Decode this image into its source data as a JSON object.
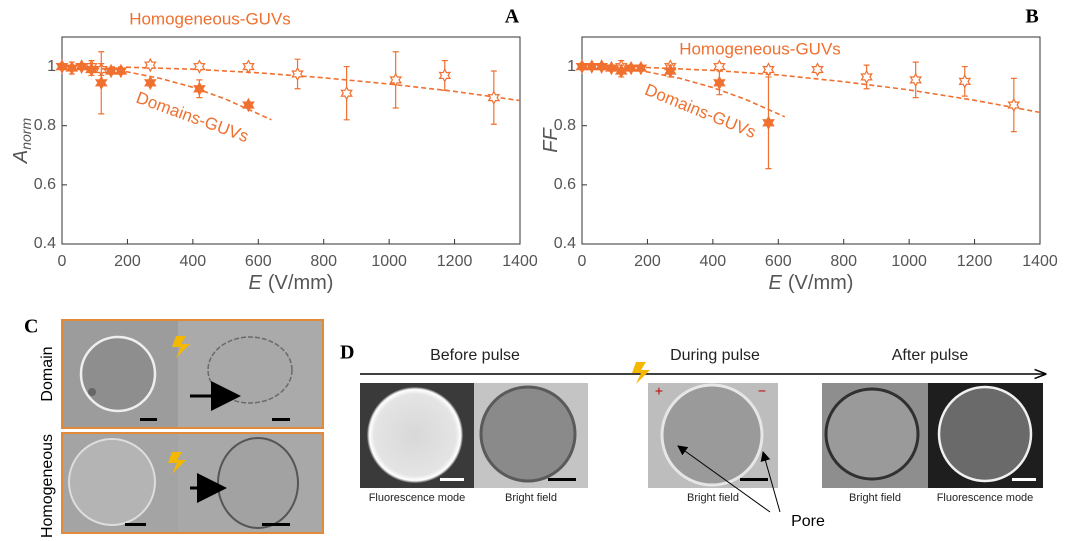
{
  "chart_data": [
    {
      "type": "scatter",
      "panel_label": "A",
      "y_label": "A",
      "y_label_subscript": "norm",
      "x_label_symbol": "E",
      "x_label_unit": "(V/mm)",
      "xlim": [
        0,
        1400
      ],
      "xticks": [
        0,
        200,
        400,
        600,
        800,
        1000,
        1200,
        1400
      ],
      "ylim": [
        0.4,
        1.1
      ],
      "yticks": [
        0.4,
        0.6,
        0.8,
        1
      ],
      "series": [
        {
          "name": "Homogeneous-GUVs",
          "color": "#f07030",
          "marker": "open",
          "x": [
            0,
            60,
            90,
            120,
            270,
            420,
            570,
            720,
            870,
            1020,
            1170,
            1320
          ],
          "values": [
            1.0,
            1.0,
            1.0,
            0.99,
            1.005,
            1.0,
            1.0,
            0.975,
            0.91,
            0.955,
            0.97,
            0.895
          ],
          "errors": [
            0.01,
            0.01,
            0.02,
            0.02,
            0.01,
            0.01,
            0.01,
            0.05,
            0.09,
            0.095,
            0.05,
            0.09
          ],
          "fit": {
            "x": [
              0,
              200,
              400,
              600,
              800,
              1000,
              1200,
              1400
            ],
            "values": [
              1.0,
              0.998,
              0.991,
              0.979,
              0.962,
              0.941,
              0.916,
              0.885
            ]
          }
        },
        {
          "name": "Domains-GUVs",
          "color": "#f07030",
          "marker": "filled",
          "x": [
            0,
            30,
            60,
            90,
            120,
            150,
            180,
            270,
            420,
            570
          ],
          "values": [
            1.0,
            0.995,
            1.0,
            0.99,
            0.945,
            0.985,
            0.985,
            0.945,
            0.925,
            0.87
          ],
          "errors": [
            0.01,
            0.02,
            0.01,
            0.02,
            0.105,
            0.01,
            0.01,
            0.01,
            0.03,
            0.01
          ],
          "fit": {
            "x": [
              0,
              100,
              200,
              300,
              400,
              500,
              640
            ],
            "values": [
              1.0,
              0.996,
              0.982,
              0.96,
              0.93,
              0.89,
              0.82
            ]
          }
        }
      ]
    },
    {
      "type": "scatter",
      "panel_label": "B",
      "y_label": "FF",
      "x_label_symbol": "E",
      "x_label_unit": "(V/mm)",
      "xlim": [
        0,
        1400
      ],
      "xticks": [
        0,
        200,
        400,
        600,
        800,
        1000,
        1200,
        1400
      ],
      "ylim": [
        0.4,
        1.1
      ],
      "yticks": [
        0.4,
        0.6,
        0.8,
        1
      ],
      "series": [
        {
          "name": "Homogeneous-GUVs",
          "color": "#f07030",
          "marker": "open",
          "x": [
            0,
            60,
            120,
            270,
            420,
            570,
            720,
            870,
            1020,
            1170,
            1320
          ],
          "values": [
            1.0,
            1.0,
            1.0,
            1.0,
            1.0,
            0.99,
            0.99,
            0.965,
            0.955,
            0.95,
            0.87
          ],
          "errors": [
            0.01,
            0.01,
            0.02,
            0.01,
            0.01,
            0.01,
            0.01,
            0.04,
            0.06,
            0.05,
            0.09
          ],
          "fit": {
            "x": [
              0,
              200,
              400,
              600,
              800,
              1000,
              1200,
              1400
            ],
            "values": [
              1.0,
              0.997,
              0.987,
              0.972,
              0.949,
              0.921,
              0.886,
              0.845
            ]
          }
        },
        {
          "name": "Domains-GUVs",
          "color": "#f07030",
          "marker": "filled",
          "x": [
            0,
            30,
            60,
            90,
            120,
            150,
            180,
            270,
            420,
            570
          ],
          "values": [
            1.0,
            1.0,
            1.0,
            0.995,
            0.985,
            0.995,
            0.995,
            0.985,
            0.945,
            0.81
          ],
          "errors": [
            0.01,
            0.01,
            0.01,
            0.01,
            0.02,
            0.01,
            0.01,
            0.02,
            0.04,
            0.155
          ],
          "fit": {
            "x": [
              0,
              100,
              200,
              300,
              400,
              500,
              620
            ],
            "values": [
              1.0,
              0.996,
              0.982,
              0.96,
              0.929,
              0.889,
              0.83
            ]
          }
        }
      ]
    }
  ],
  "panel_c": {
    "label": "C",
    "rows": [
      "Domain",
      "Homogeneous"
    ]
  },
  "panel_d": {
    "label": "D",
    "stages": [
      "Before pulse",
      "During pulse",
      "After pulse"
    ],
    "captions": [
      "Fluorescence mode",
      "Bright field",
      "Bright field",
      "Bright field",
      "Fluorescence mode"
    ],
    "polarity": [
      "+",
      "−"
    ],
    "pore_label": "Pore"
  }
}
